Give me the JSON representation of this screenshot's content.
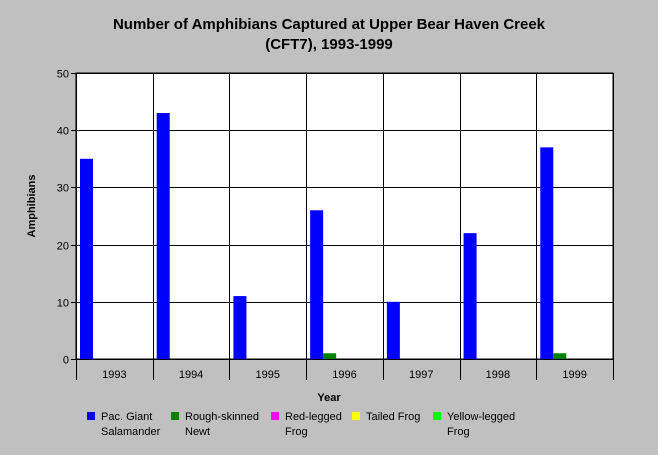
{
  "chart_data": {
    "type": "bar",
    "title": "Number of Amphibians Captured at Upper Bear Haven Creek",
    "subtitle": "(CFT7), 1993-1999",
    "xlabel": "Year",
    "ylabel": "Amphibians",
    "ylim": [
      0,
      50
    ],
    "yticks": [
      0,
      10,
      20,
      30,
      40,
      50
    ],
    "grid": true,
    "legend_position": "bottom",
    "categories": [
      "1993",
      "1994",
      "1995",
      "1996",
      "1997",
      "1998",
      "1999"
    ],
    "series": [
      {
        "name_lines": [
          "Pac. Giant",
          "Salamander"
        ],
        "color": "#0000ff",
        "values": [
          35,
          43,
          11,
          26,
          10,
          22,
          37
        ]
      },
      {
        "name_lines": [
          "Rough-skinned",
          "Newt"
        ],
        "color": "#008000",
        "values": [
          0,
          0,
          0,
          1,
          0,
          0,
          1
        ]
      },
      {
        "name_lines": [
          "Red-legged",
          "Frog"
        ],
        "color": "#ff00ff",
        "values": [
          0,
          0,
          0,
          0,
          0,
          0,
          0
        ]
      },
      {
        "name_lines": [
          "Tailed Frog"
        ],
        "color": "#ffff00",
        "values": [
          0,
          0,
          0,
          0,
          0,
          0,
          0
        ]
      },
      {
        "name_lines": [
          "Yellow-legged",
          "Frog"
        ],
        "color": "#00ff00",
        "values": [
          0,
          0,
          0,
          0,
          0,
          0,
          0
        ]
      }
    ]
  }
}
